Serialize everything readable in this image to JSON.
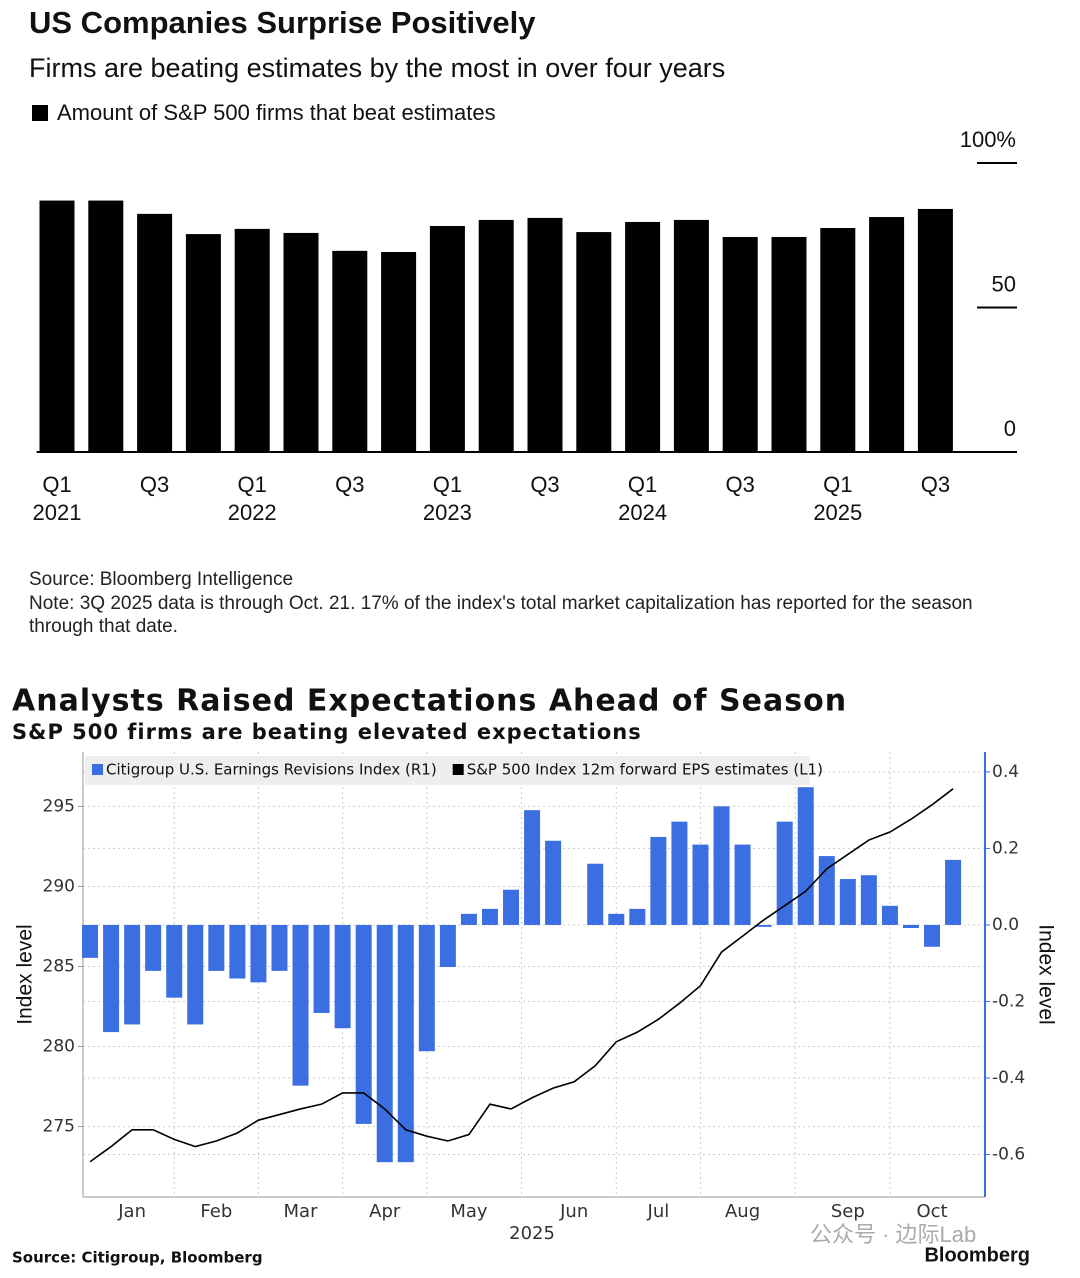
{
  "chart_data": [
    {
      "type": "bar",
      "title": "US Companies Surprise Positively",
      "subtitle": "Firms are beating estimates by the most in over four years",
      "legend": "Amount of S&P 500 firms that beat estimates",
      "color": "#000000",
      "categories": [
        "Q1",
        null,
        "Q3",
        null,
        "Q1",
        null,
        "Q3",
        null,
        "Q1",
        null,
        "Q3",
        null,
        "Q1",
        null,
        "Q3",
        null,
        "Q1",
        null,
        "Q3"
      ],
      "category_groups": [
        "2021",
        "2022",
        "2023",
        "2024",
        "2025"
      ],
      "values": [
        87,
        87,
        82.4,
        75.4,
        77.2,
        75.8,
        69.6,
        69.2,
        78.2,
        80.3,
        81,
        76.1,
        79.6,
        80.3,
        74.4,
        74.4,
        77.5,
        81.3,
        84.1
      ],
      "ylim": [
        0,
        100
      ],
      "yticks": [
        {
          "value": 100,
          "label": "100%"
        },
        50,
        0
      ],
      "source": "Source: Bloomberg Intelligence",
      "note": "Note: 3Q 2025 data is through Oct. 21. 17% of the index's total market capitalization has reported for the season through that date."
    },
    {
      "type": "combo",
      "title": "Analysts Raised Expectations Ahead of Season",
      "subtitle": "S&P 500 firms are beating elevated expectations",
      "ylabel": "Index level",
      "y2label": "Index level",
      "xlabel": "2025",
      "categories": [
        null,
        null,
        "Jan",
        null,
        null,
        null,
        "Feb",
        null,
        null,
        null,
        "Mar",
        null,
        null,
        null,
        "Apr",
        null,
        null,
        null,
        "May",
        null,
        null,
        null,
        null,
        "Jun",
        null,
        null,
        null,
        "Jul",
        null,
        null,
        null,
        "Aug",
        null,
        null,
        null,
        null,
        "Sep",
        null,
        null,
        null,
        "Oct",
        null
      ],
      "series": [
        {
          "name": "Citigroup U.S. Earnings Revisions Index (R1)",
          "type": "bar",
          "axis": "y2",
          "color": "#3b6ee0",
          "values": [
            -0.086,
            -0.28,
            -0.26,
            -0.12,
            -0.19,
            -0.26,
            -0.12,
            -0.14,
            -0.15,
            -0.12,
            -0.42,
            -0.23,
            -0.27,
            -0.52,
            -0.62,
            -0.62,
            -0.33,
            -0.11,
            0.029,
            0.042,
            0.092,
            0.3,
            0.22,
            null,
            0.16,
            0.029,
            0.042,
            0.23,
            0.27,
            0.21,
            0.31,
            0.21,
            -0.005,
            0.27,
            0.36,
            0.18,
            0.12,
            0.13,
            0.05,
            -0.008,
            -0.057,
            0.17
          ]
        },
        {
          "name": "S&P 500 Index 12m forward EPS estimates (L1)",
          "type": "line",
          "axis": "y",
          "color": "#000000",
          "values": [
            272.8,
            273.75,
            274.8,
            274.8,
            274.2,
            273.75,
            274.1,
            274.6,
            275.4,
            275.75,
            276.1,
            276.4,
            277.1,
            277.1,
            276.1,
            274.8,
            274.4,
            274.1,
            274.5,
            276.4,
            276.1,
            276.8,
            277.4,
            277.8,
            278.8,
            280.3,
            280.9,
            281.7,
            282.7,
            283.8,
            285.9,
            286.9,
            287.9,
            288.8,
            289.7,
            291.1,
            292.0,
            292.9,
            293.4,
            294.2,
            295.1,
            296.1
          ]
        }
      ],
      "ylim": [
        270.6,
        298.4
      ],
      "yticks": [
        275,
        280,
        285,
        290,
        295
      ],
      "y2lim": [
        -0.711,
        0.452
      ],
      "y2ticks": [
        0.4,
        0.2,
        {
          "value": 0,
          "label": "0.0"
        },
        -0.2,
        -0.4,
        -0.6
      ],
      "grid": true,
      "source": "Source: Citigroup, Bloomberg",
      "brand": "Bloomberg",
      "watermark": "公众号 · 边际Lab"
    }
  ]
}
